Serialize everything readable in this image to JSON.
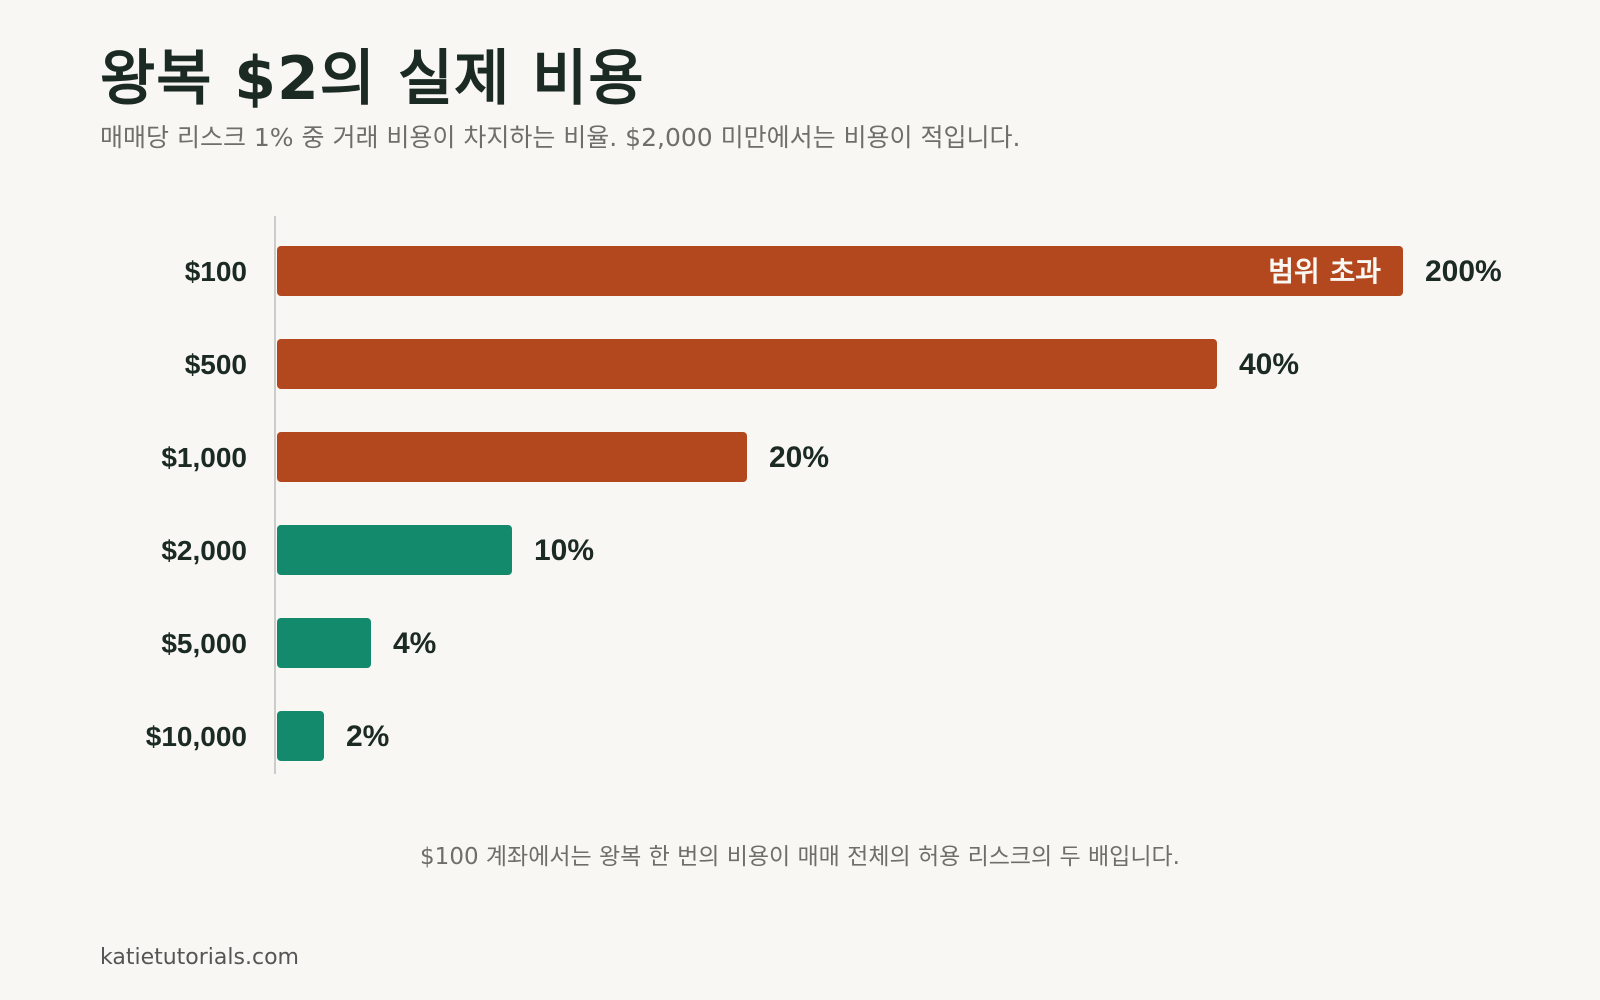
{
  "header": {
    "title": "왕복 $2의 실제 비용",
    "subtitle": "매매당 리스크 1% 중 거래 비용이 차지하는 비율. $2,000 미만에서는 비용이 적입니다."
  },
  "footnote": "$100 계좌에서는 왕복 한 번의 비용이 매매 전체의 허용 리스크의 두 배입니다.",
  "source": "katietutorials.com",
  "colors": {
    "high": "#b3471d",
    "low": "#138a6b",
    "text": "#1b2a22",
    "axis": "#cccccc",
    "inbar_text": "#f9f7f3"
  },
  "chart_data": {
    "type": "bar",
    "orientation": "horizontal",
    "categories": [
      "$100",
      "$500",
      "$1,000",
      "$2,000",
      "$5,000",
      "$10,000"
    ],
    "values": [
      200,
      40,
      20,
      10,
      4,
      2
    ],
    "value_labels": [
      "200%",
      "40%",
      "20%",
      "10%",
      "4%",
      "2%"
    ],
    "color_groups": [
      "high",
      "high",
      "high",
      "low",
      "low",
      "low"
    ],
    "clipped": [
      true,
      false,
      false,
      false,
      false,
      false
    ],
    "clip_annotation": "범위 초과",
    "xlim": [
      0,
      48
    ],
    "title": "",
    "xlabel": "",
    "ylabel": ""
  }
}
